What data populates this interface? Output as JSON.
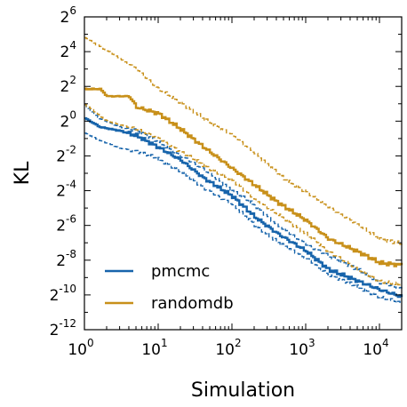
{
  "chart_data": {
    "type": "line",
    "xlabel": "Simulation",
    "ylabel": "KL",
    "x_scale": "log10",
    "y_scale": "log2",
    "xlim": [
      1,
      20000
    ],
    "ylim": [
      0.000244140625,
      64
    ],
    "x_ticks": [
      {
        "value": 1,
        "base": "10",
        "exp": "0"
      },
      {
        "value": 10,
        "base": "10",
        "exp": "1"
      },
      {
        "value": 100,
        "base": "10",
        "exp": "2"
      },
      {
        "value": 1000,
        "base": "10",
        "exp": "3"
      },
      {
        "value": 10000,
        "base": "10",
        "exp": "4"
      }
    ],
    "y_ticks": [
      {
        "value": 0.000244140625,
        "base": "2",
        "exp": "-12"
      },
      {
        "value": 0.0009765625,
        "base": "2",
        "exp": "-10"
      },
      {
        "value": 0.00390625,
        "base": "2",
        "exp": "-8"
      },
      {
        "value": 0.015625,
        "base": "2",
        "exp": "-6"
      },
      {
        "value": 0.0625,
        "base": "2",
        "exp": "-4"
      },
      {
        "value": 0.25,
        "base": "2",
        "exp": "-2"
      },
      {
        "value": 1,
        "base": "2",
        "exp": "0"
      },
      {
        "value": 4,
        "base": "2",
        "exp": "2"
      },
      {
        "value": 16,
        "base": "2",
        "exp": "4"
      },
      {
        "value": 64,
        "base": "2",
        "exp": "6"
      }
    ],
    "legend": {
      "position": "bottom-left"
    },
    "series": [
      {
        "name": "pmcmc",
        "color": "#1764ab",
        "style": "solid",
        "legend": true,
        "x": [
          1,
          1.6,
          3,
          5,
          10,
          20,
          40,
          100,
          200,
          400,
          1000,
          2000,
          5000,
          10000,
          20000
        ],
        "y": [
          1.12,
          0.79,
          0.68,
          0.56,
          0.35,
          0.21,
          0.105,
          0.05,
          0.022,
          0.0115,
          0.0056,
          0.0027,
          0.0017,
          0.0012,
          0.0009
        ]
      },
      {
        "name": "pmcmc upper",
        "color": "#1764ab",
        "style": "dashed",
        "legend": false,
        "x": [
          1,
          1.6,
          3,
          5,
          10,
          20,
          40,
          100,
          200,
          400,
          1000,
          2000,
          5000,
          10000,
          20000
        ],
        "y": [
          1.9,
          1.1,
          0.79,
          0.68,
          0.44,
          0.25,
          0.15,
          0.062,
          0.035,
          0.016,
          0.0074,
          0.0046,
          0.0027,
          0.0016,
          0.00124
        ]
      },
      {
        "name": "pmcmc lower",
        "color": "#1764ab",
        "style": "dashed",
        "legend": false,
        "x": [
          1,
          1.6,
          3,
          5,
          10,
          20,
          40,
          100,
          200,
          400,
          1000,
          2000,
          5000,
          10000,
          20000
        ],
        "y": [
          0.62,
          0.46,
          0.34,
          0.3,
          0.22,
          0.135,
          0.07,
          0.036,
          0.016,
          0.0082,
          0.0042,
          0.0022,
          0.00135,
          0.0009,
          0.0007
        ]
      },
      {
        "name": "randomdb",
        "color": "#c8901a",
        "style": "solid",
        "legend": true,
        "x": [
          1,
          1.6,
          2,
          4,
          5,
          10,
          20,
          40,
          100,
          200,
          400,
          1000,
          2000,
          5000,
          10000,
          20000
        ],
        "y": [
          3.6,
          3.6,
          2.7,
          2.7,
          1.75,
          1.35,
          0.72,
          0.36,
          0.15,
          0.078,
          0.04,
          0.019,
          0.0092,
          0.0055,
          0.0035,
          0.0032
        ]
      },
      {
        "name": "randomdb upper",
        "color": "#c8901a",
        "style": "dashed",
        "legend": false,
        "x": [
          1,
          2,
          5,
          10,
          20,
          50,
          100,
          200,
          500,
          1000,
          2000,
          5000,
          10000,
          20000
        ],
        "y": [
          28,
          16.5,
          8.1,
          3.6,
          2.1,
          0.92,
          0.58,
          0.28,
          0.1,
          0.06,
          0.033,
          0.016,
          0.009,
          0.0076
        ]
      },
      {
        "name": "randomdb lower",
        "color": "#c8901a",
        "style": "dashed",
        "legend": false,
        "x": [
          1,
          2,
          5,
          10,
          20,
          50,
          100,
          200,
          500,
          1000,
          2000,
          5000,
          10000,
          20000
        ],
        "y": [
          1.95,
          1.0,
          0.72,
          0.51,
          0.29,
          0.15,
          0.094,
          0.044,
          0.021,
          0.011,
          0.0056,
          0.0027,
          0.0017,
          0.00145
        ]
      }
    ]
  }
}
